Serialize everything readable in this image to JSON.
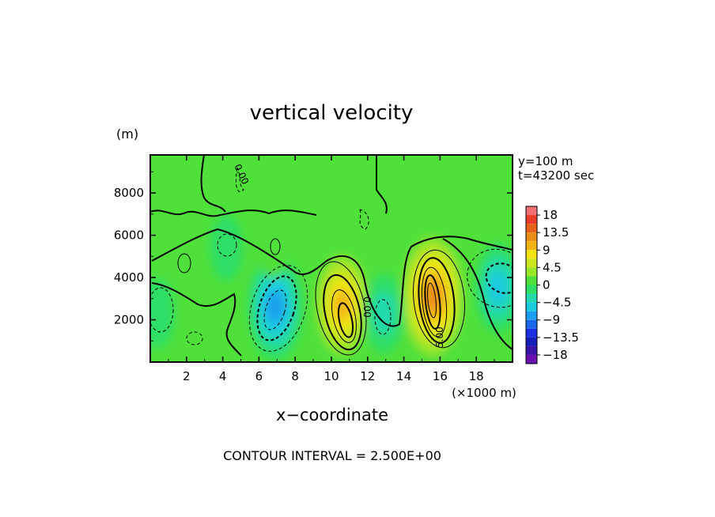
{
  "chart_data": {
    "type": "heatmap",
    "title": "vertical velocity",
    "xlabel": "x−coordinate",
    "x_unit": "(×1000 m)",
    "y_unit": "(m)",
    "xlim": [
      0,
      20
    ],
    "ylim": [
      0,
      9800
    ],
    "x_ticks": [
      2,
      4,
      6,
      8,
      10,
      12,
      14,
      16,
      18
    ],
    "y_ticks": [
      2000,
      4000,
      6000,
      8000
    ],
    "annotations": [
      "y=100 m",
      "t=43200 sec"
    ],
    "contour_interval_text": "CONTOUR INTERVAL = 2.500E+00",
    "contour_labels": [
      "0.00",
      "0.00",
      "5.00"
    ],
    "colorbar": {
      "ticks": [
        18,
        13.5,
        9,
        4.5,
        0,
        -4.5,
        -9,
        -13.5,
        -18
      ],
      "tick_labels": [
        "18",
        "13.5",
        "9",
        "4.5",
        "0",
        "−4.5",
        "−9",
        "−13.5",
        "−18"
      ],
      "bins": [
        {
          "from": 18,
          "to": 20.25,
          "color": "#f06f74"
        },
        {
          "from": 15.75,
          "to": 18,
          "color": "#eb3b2b"
        },
        {
          "from": 13.5,
          "to": 15.75,
          "color": "#e8611c"
        },
        {
          "from": 11.25,
          "to": 13.5,
          "color": "#e98d16"
        },
        {
          "from": 9,
          "to": 11.25,
          "color": "#f0b512"
        },
        {
          "from": 6.75,
          "to": 9,
          "color": "#f3e314"
        },
        {
          "from": 4.5,
          "to": 6.75,
          "color": "#cbe51f"
        },
        {
          "from": 2.25,
          "to": 4.5,
          "color": "#9ae62a"
        },
        {
          "from": 0,
          "to": 2.25,
          "color": "#4fe03a"
        },
        {
          "from": -2.25,
          "to": 0,
          "color": "#2ede66"
        },
        {
          "from": -4.5,
          "to": -2.25,
          "color": "#22d9ad"
        },
        {
          "from": -6.75,
          "to": -4.5,
          "color": "#1bcbe0"
        },
        {
          "from": -9,
          "to": -6.75,
          "color": "#1b9fee"
        },
        {
          "from": -11.25,
          "to": -9,
          "color": "#1b67ea"
        },
        {
          "from": -13.5,
          "to": -11.25,
          "color": "#1b2fe2"
        },
        {
          "from": -15.75,
          "to": -13.5,
          "color": "#151fba"
        },
        {
          "from": -18,
          "to": -15.75,
          "color": "#3a13a8"
        },
        {
          "from": -20.25,
          "to": -18,
          "color": "#6a0fb0"
        }
      ]
    },
    "background_color": "#4fe03a",
    "features": [
      {
        "x": 10.6,
        "y": 2700,
        "value": 10.5
      },
      {
        "x": 15.6,
        "y": 3100,
        "value": 14.5
      },
      {
        "x": 6.9,
        "y": 2600,
        "value": -8.5
      },
      {
        "x": 12.9,
        "y": 2300,
        "value": -4.5
      },
      {
        "x": 19.2,
        "y": 3500,
        "value": -6.0
      },
      {
        "x": 0.4,
        "y": 2300,
        "value": -3.0
      },
      {
        "x": 4.2,
        "y": 5400,
        "value": -2.5
      },
      {
        "x": 1.8,
        "y": 4600,
        "value": 2.5
      },
      {
        "x": 6.8,
        "y": 5500,
        "value": 2.5
      }
    ]
  }
}
